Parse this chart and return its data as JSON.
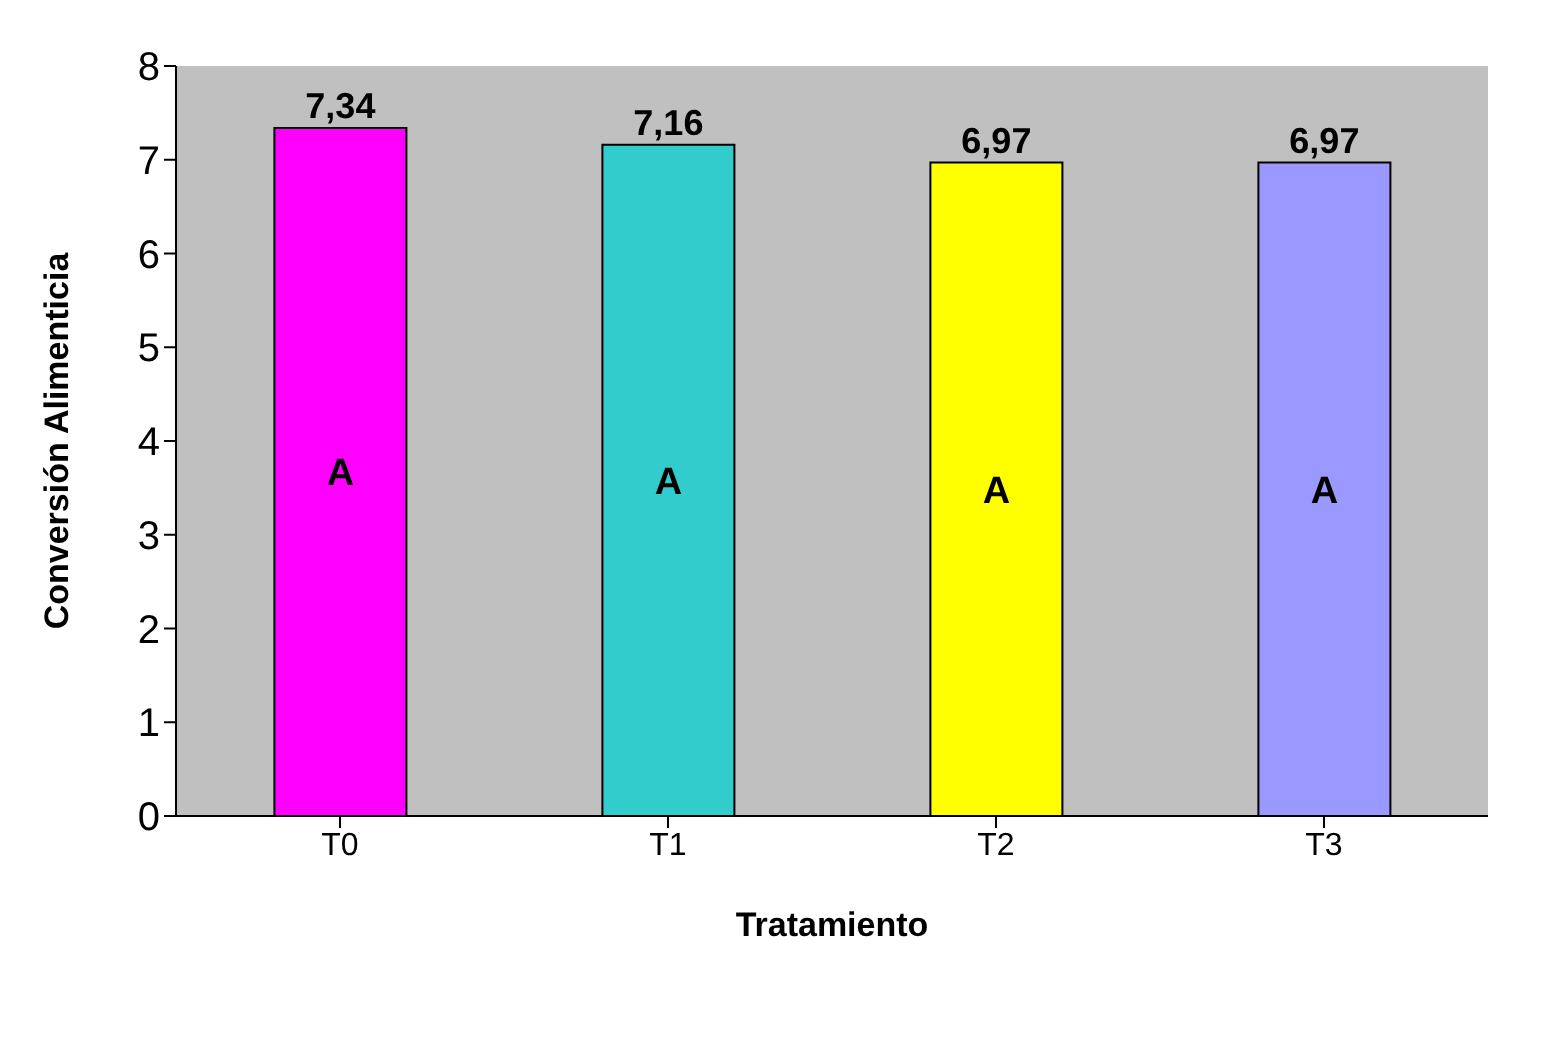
{
  "chart_data": {
    "type": "bar",
    "categories": [
      "T0",
      "T1",
      "T2",
      "T3"
    ],
    "values": [
      7.34,
      7.16,
      6.97,
      6.97
    ],
    "colors": [
      "#ff00ff",
      "#33cccc",
      "#ffff00",
      "#9999ff"
    ],
    "value_labels": [
      "7,34",
      "7,16",
      "6,97",
      "6,97"
    ],
    "xlabel": "Tratamiento",
    "ylabel": "Conversión Alimenticia",
    "ylim": [
      0,
      8
    ],
    "yticks": [
      0,
      1,
      2,
      3,
      4,
      5,
      6,
      7,
      8
    ],
    "annotations": [
      "A",
      "A",
      "A",
      "A"
    ]
  }
}
